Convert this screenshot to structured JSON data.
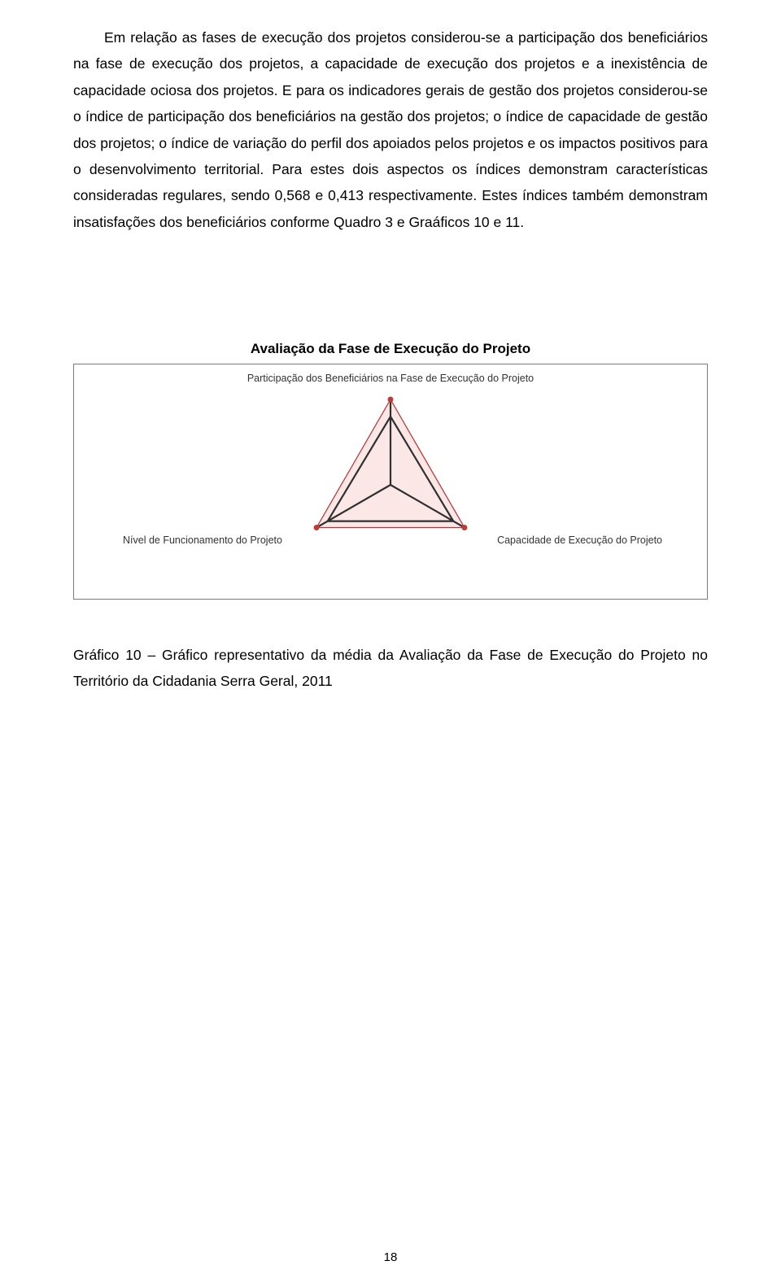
{
  "paragraph": "Em relação as fases de execução dos projetos considerou-se a participação dos beneficiários na fase de execução dos projetos, a capacidade de execução dos projetos e a inexistência de capacidade ociosa dos projetos. E para os indicadores gerais de gestão dos projetos considerou-se o índice de participação dos beneficiários na gestão dos projetos; o índice de capacidade de gestão dos projetos; o índice de variação do perfil dos apoiados pelos projetos e os impactos positivos para o desenvolvimento territorial. Para estes dois aspectos os índices demonstram características consideradas regulares, sendo 0,568 e 0,413 respectivamente. Estes índices também demonstram insatisfações dos beneficiários conforme Quadro 3 e Graáficos 10 e 11.",
  "chart": {
    "type": "radar",
    "title": "Avaliação da Fase de Execução do Projeto",
    "axes": [
      {
        "label": "Participação dos Beneficiários na Fase de Execução do Projeto",
        "angle_deg": 90
      },
      {
        "label": "Capacidade de Execução do Projeto",
        "angle_deg": -30
      },
      {
        "label": "Nível de Funcionamento do Projeto",
        "angle_deg": 210
      }
    ],
    "inner_values": [
      0.8,
      0.85,
      0.85
    ],
    "outer_radius": 105,
    "colors": {
      "outer_fill": "#fbe3e3",
      "outer_fill_opacity": 0.85,
      "outer_stroke": "#bb3030",
      "axis_stroke": "#303030",
      "axis_stroke_width": 2.2,
      "inner_stroke": "#303030",
      "inner_stroke_width": 2.2,
      "marker_fill": "#c13a3a",
      "marker_radius": 3.5,
      "background": "#ffffff",
      "border": "#7a7a7a",
      "text_color": "#333333"
    },
    "label_fontsize": 12.5,
    "title_fontsize": 17
  },
  "caption": "Gráfico 10 – Gráfico representativo da média da Avaliação da Fase de Execução do Projeto no Território da Cidadania Serra Geral, 2011",
  "page_number": "18"
}
